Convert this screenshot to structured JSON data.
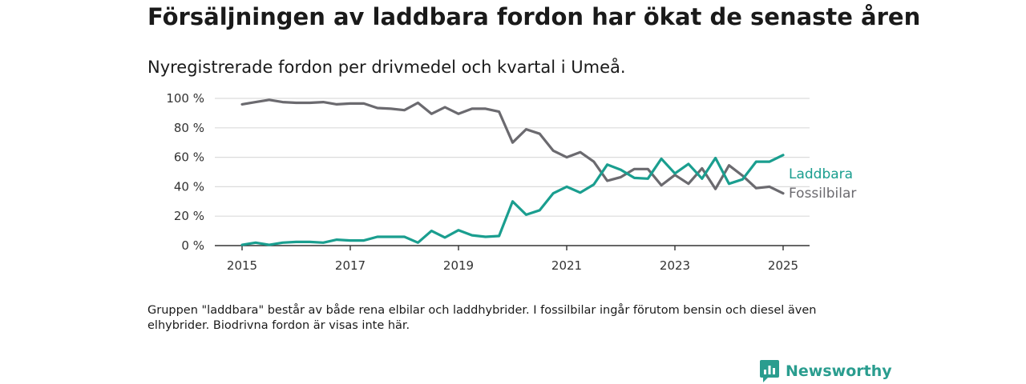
{
  "title": "Försäljningen av laddbara fordon har ökat de senaste åren",
  "subtitle": "Nyregistrerade fordon per drivmedel och kvartal i Umeå.",
  "footnote": "Gruppen \"laddbara\" består av både rena elbilar och laddhybrider. I fossilbilar ingår förutom bensin och diesel även elhybrider. Biodrivna fordon är visas inte här.",
  "brand": {
    "name": "Newsworthy",
    "icon": "newsworthy-logo-icon",
    "color": "#2a9d8f"
  },
  "chart_data": {
    "type": "line",
    "x_start": 2015,
    "x_step": 0.25,
    "xlim": [
      2014.8,
      2025.5
    ],
    "ylim": [
      0,
      100
    ],
    "x_ticks": [
      2015,
      2017,
      2019,
      2021,
      2023,
      2025
    ],
    "y_ticks": [
      0,
      20,
      40,
      60,
      80,
      100
    ],
    "y_tick_labels": [
      "0 %",
      "20 %",
      "40 %",
      "60 %",
      "80 %",
      "100 %"
    ],
    "grid": true,
    "series": [
      {
        "name": "Laddbara",
        "color": "#1a9e8f",
        "values": [
          0.5,
          2,
          0.5,
          2,
          2.5,
          2.5,
          2,
          4,
          3.5,
          3.5,
          6,
          6,
          6,
          2,
          10,
          5.5,
          10.5,
          7,
          6,
          6.5,
          30,
          21,
          24,
          35.5,
          40,
          36,
          41.5,
          55,
          51.5,
          46,
          45.5,
          59,
          49,
          55.5,
          45.5,
          59.5,
          42,
          45,
          57,
          57,
          61.5
        ]
      },
      {
        "name": "Fossilbilar",
        "color": "#6b6a6f",
        "values": [
          96,
          97.5,
          99,
          97.5,
          97,
          97,
          97.5,
          96,
          96.5,
          96.5,
          93.5,
          93,
          92,
          97,
          89.5,
          94,
          89.5,
          93,
          93,
          91,
          70,
          79,
          76,
          64.5,
          60,
          63.5,
          57,
          44,
          46.5,
          52,
          52,
          41,
          48,
          42,
          52.5,
          38.5,
          54.5,
          47.5,
          39,
          40,
          35.5
        ]
      }
    ]
  }
}
